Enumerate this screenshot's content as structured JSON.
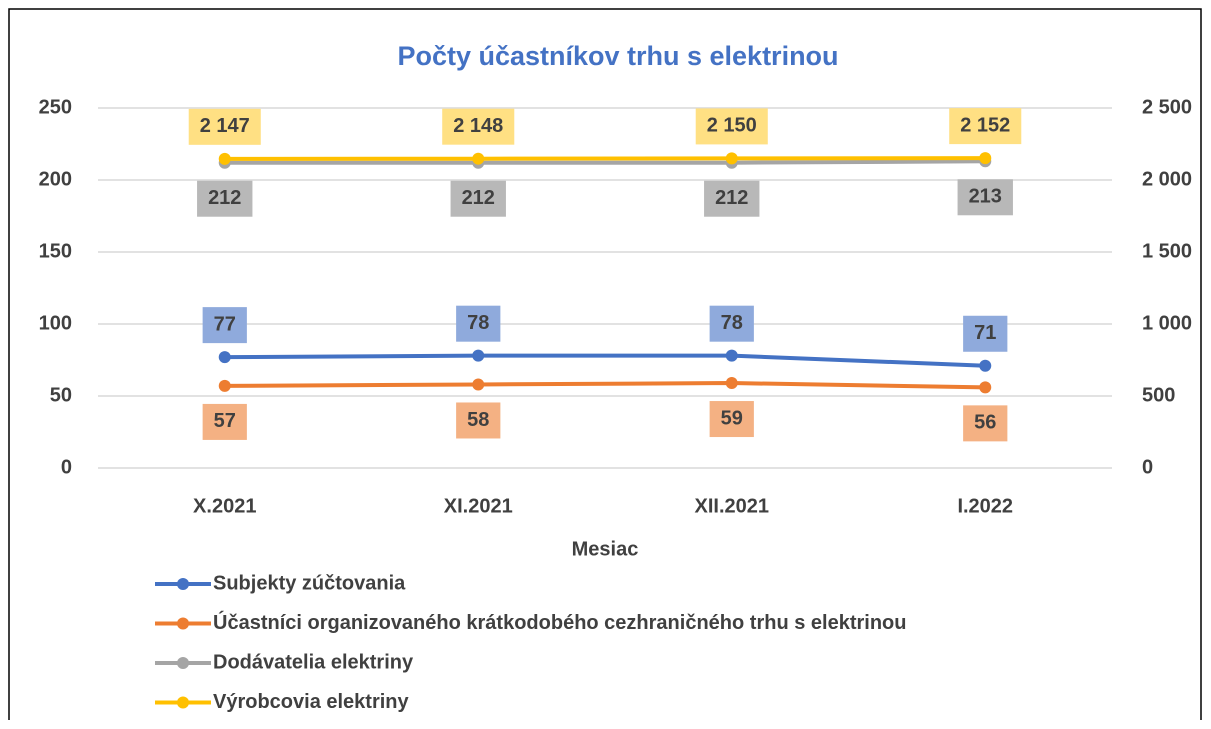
{
  "chart_data": {
    "type": "line",
    "title": "Počty účastníkov trhu s elektrinou",
    "x_label": "Mesiac",
    "categories": [
      "X.2021",
      "XI.2021",
      "XII.2021",
      "I.2022"
    ],
    "ylim": [
      0,
      250
    ],
    "yticks": [
      0,
      50,
      100,
      150,
      200,
      250
    ],
    "y2lim": [
      0,
      2500
    ],
    "y2ticks": [
      0,
      500,
      {
        "value": 1000,
        "label": "1 000"
      },
      {
        "value": 1500,
        "label": "1 500"
      },
      {
        "value": 2000,
        "label": "2 000"
      },
      {
        "value": 2500,
        "label": "2 500"
      }
    ],
    "grid": true,
    "legend": "bottom",
    "series": [
      {
        "name": "Subjekty zúčtovania",
        "color": "#4472c4",
        "label_color": "#8faadc",
        "label_position": "above",
        "values": [
          77,
          78,
          78,
          71
        ]
      },
      {
        "name": "Účastníci organizovaného krátkodobého cezhraničného trhu s elektrinou",
        "color": "#ed7d31",
        "label_color": "#f4b183",
        "label_position": "below",
        "values": [
          57,
          58,
          59,
          56
        ]
      },
      {
        "name": "Dodávatelia elektriny",
        "color": "#a5a5a5",
        "label_color": "#b8b8b8",
        "label_position": "below",
        "values": [
          212,
          212,
          212,
          213
        ]
      },
      {
        "name": "Výrobcovia elektriny",
        "color": "#ffc000",
        "label_color": "#ffe083",
        "label_position": "above",
        "axis": "y2",
        "values": [
          2147,
          2148,
          2150,
          2152
        ],
        "value_labels": [
          "2 147",
          "2 148",
          "2 150",
          "2 152"
        ]
      }
    ]
  }
}
